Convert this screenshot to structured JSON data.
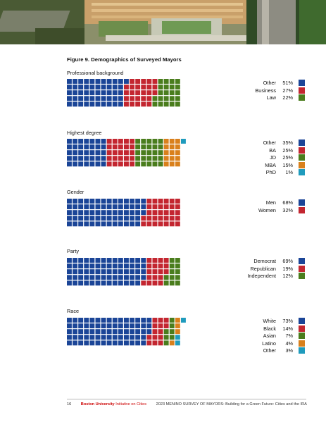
{
  "figure_title": "Figure 9. Demographics of Surveyed Mayors",
  "colors": {
    "blue": "#1b4597",
    "red": "#c32630",
    "green": "#4a7d1d",
    "orange": "#d9801c",
    "teal": "#1f9bbd"
  },
  "footer": {
    "page_number": "16",
    "university": "Boston University",
    "initiative": "Initiative on Cities",
    "report_title": "2023 MENINO SURVEY OF MAYORS: Building for a Green Future: Cities and the IRA"
  },
  "chart_data": [
    {
      "type": "waffle",
      "title": "Professional background",
      "categories": [
        "Other",
        "Business",
        "Law"
      ],
      "values": [
        51,
        27,
        22
      ],
      "labels": [
        "51%",
        "27%",
        "22%"
      ],
      "colors": [
        "#1b4597",
        "#c32630",
        "#4a7d1d"
      ]
    },
    {
      "type": "waffle",
      "title": "Highest degree",
      "categories": [
        "Other",
        "BA",
        "JD",
        "MBA",
        "PhD"
      ],
      "values": [
        35,
        25,
        25,
        15,
        1
      ],
      "labels": [
        "35%",
        "25%",
        "25%",
        "15%",
        "1%"
      ],
      "colors": [
        "#1b4597",
        "#c32630",
        "#4a7d1d",
        "#d9801c",
        "#1f9bbd"
      ]
    },
    {
      "type": "waffle",
      "title": "Gender",
      "categories": [
        "Men",
        "Women"
      ],
      "values": [
        68,
        32
      ],
      "labels": [
        "68%",
        "32%"
      ],
      "colors": [
        "#1b4597",
        "#c32630"
      ]
    },
    {
      "type": "waffle",
      "title": "Party",
      "categories": [
        "Democrat",
        "Republican",
        "Independent"
      ],
      "values": [
        69,
        19,
        12
      ],
      "labels": [
        "69%",
        "19%",
        "12%"
      ],
      "colors": [
        "#1b4597",
        "#c32630",
        "#4a7d1d"
      ]
    },
    {
      "type": "waffle",
      "title": "Race",
      "categories": [
        "White",
        "Black",
        "Asian",
        "Latino",
        "Other"
      ],
      "values": [
        73,
        14,
        7,
        4,
        3
      ],
      "labels": [
        "73%",
        "14%",
        "7%",
        "4%",
        "3%"
      ],
      "colors": [
        "#1b4597",
        "#c32630",
        "#4a7d1d",
        "#d9801c",
        "#1f9bbd"
      ]
    }
  ]
}
